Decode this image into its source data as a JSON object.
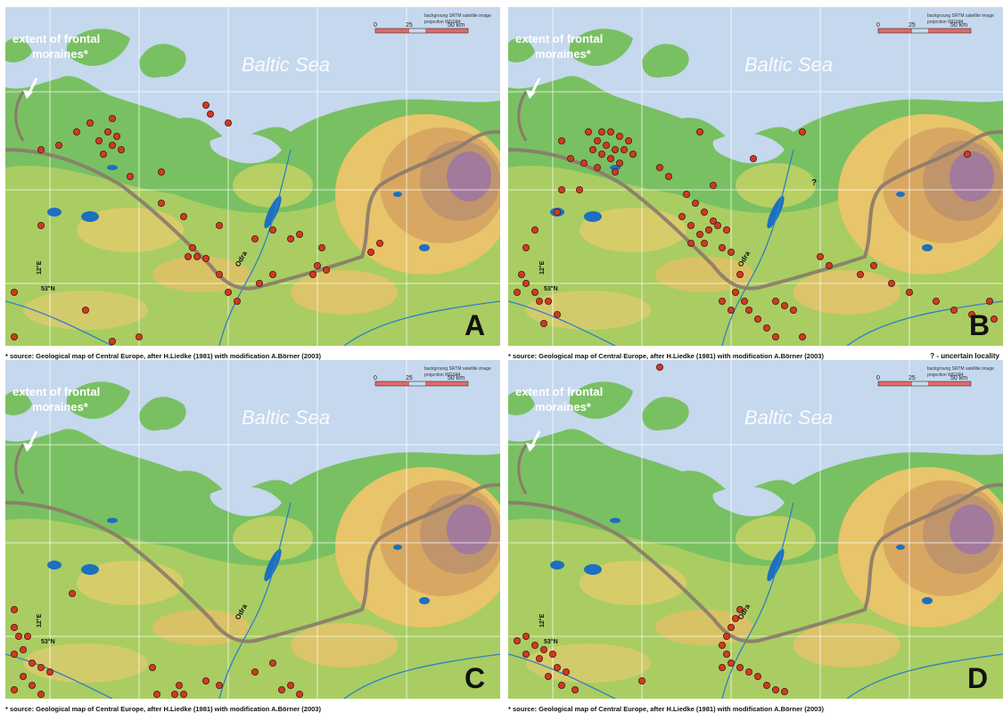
{
  "panels": [
    {
      "letter": "A",
      "sea_label": "Baltic Sea",
      "moraine_label_1": "extent of frontal",
      "moraine_label_2": "moraines*",
      "scale_note_1": "backgroung SRTM satellite image",
      "scale_note_2": "projection WGS84",
      "scale_ticks": [
        "0",
        "25",
        "50 km"
      ],
      "lon_label": "12°E",
      "lat_label": "53°N",
      "river_label": "Odra",
      "source": "* source: Geological map of Central Europe, after H.Liedke (1981) with modification A.Börner (2003)"
    },
    {
      "letter": "B",
      "sea_label": "Baltic Sea",
      "moraine_label_1": "extent of frontal",
      "moraine_label_2": "moraines*",
      "scale_note_1": "backgroung SRTM satellite image",
      "scale_note_2": "projection WGS84",
      "scale_ticks": [
        "0",
        "25",
        "50 km"
      ],
      "lon_label": "12°E",
      "lat_label": "53°N",
      "river_label": "Odra",
      "source": "* source: Geological map of Central Europe, after H.Liedke (1981) with modification A.Börner (2003)",
      "question_mark": "?",
      "uncertain_note": "? - uncertain locality"
    },
    {
      "letter": "C",
      "sea_label": "Baltic Sea",
      "moraine_label_1": "extent of frontal",
      "moraine_label_2": "moraines*",
      "scale_note_1": "backgroung SRTM satellite image",
      "scale_note_2": "projection WGS84",
      "scale_ticks": [
        "0",
        "25",
        "50 km"
      ],
      "lon_label": "12°E",
      "lat_label": "53°N",
      "river_label": "Odra",
      "source": "* source: Geological map of Central Europe, after H.Liedke (1981) with modification A.Börner (2003)"
    },
    {
      "letter": "D",
      "sea_label": "Baltic Sea",
      "moraine_label_1": "extent of frontal",
      "moraine_label_2": "moraines*",
      "scale_note_1": "backgroung SRTM satellite image",
      "scale_note_2": "projection WGS84",
      "scale_ticks": [
        "0",
        "25",
        "50 km"
      ],
      "lon_label": "12°E",
      "lat_label": "53°N",
      "river_label": "Odra",
      "source": "* source: Geological map of Central Europe, after H.Liedke (1981) with modification A.Börner (2003)"
    }
  ],
  "colors": {
    "sea": "#c5d8ee",
    "lowland": "#79c062",
    "upland": "#e8c46a",
    "highland": "#c0956c",
    "peak": "#a17a9c",
    "moraine_line": "#8b7a6c",
    "locality": "#d03a22",
    "river": "#2f7fc8",
    "lake": "#1d6fc0"
  }
}
